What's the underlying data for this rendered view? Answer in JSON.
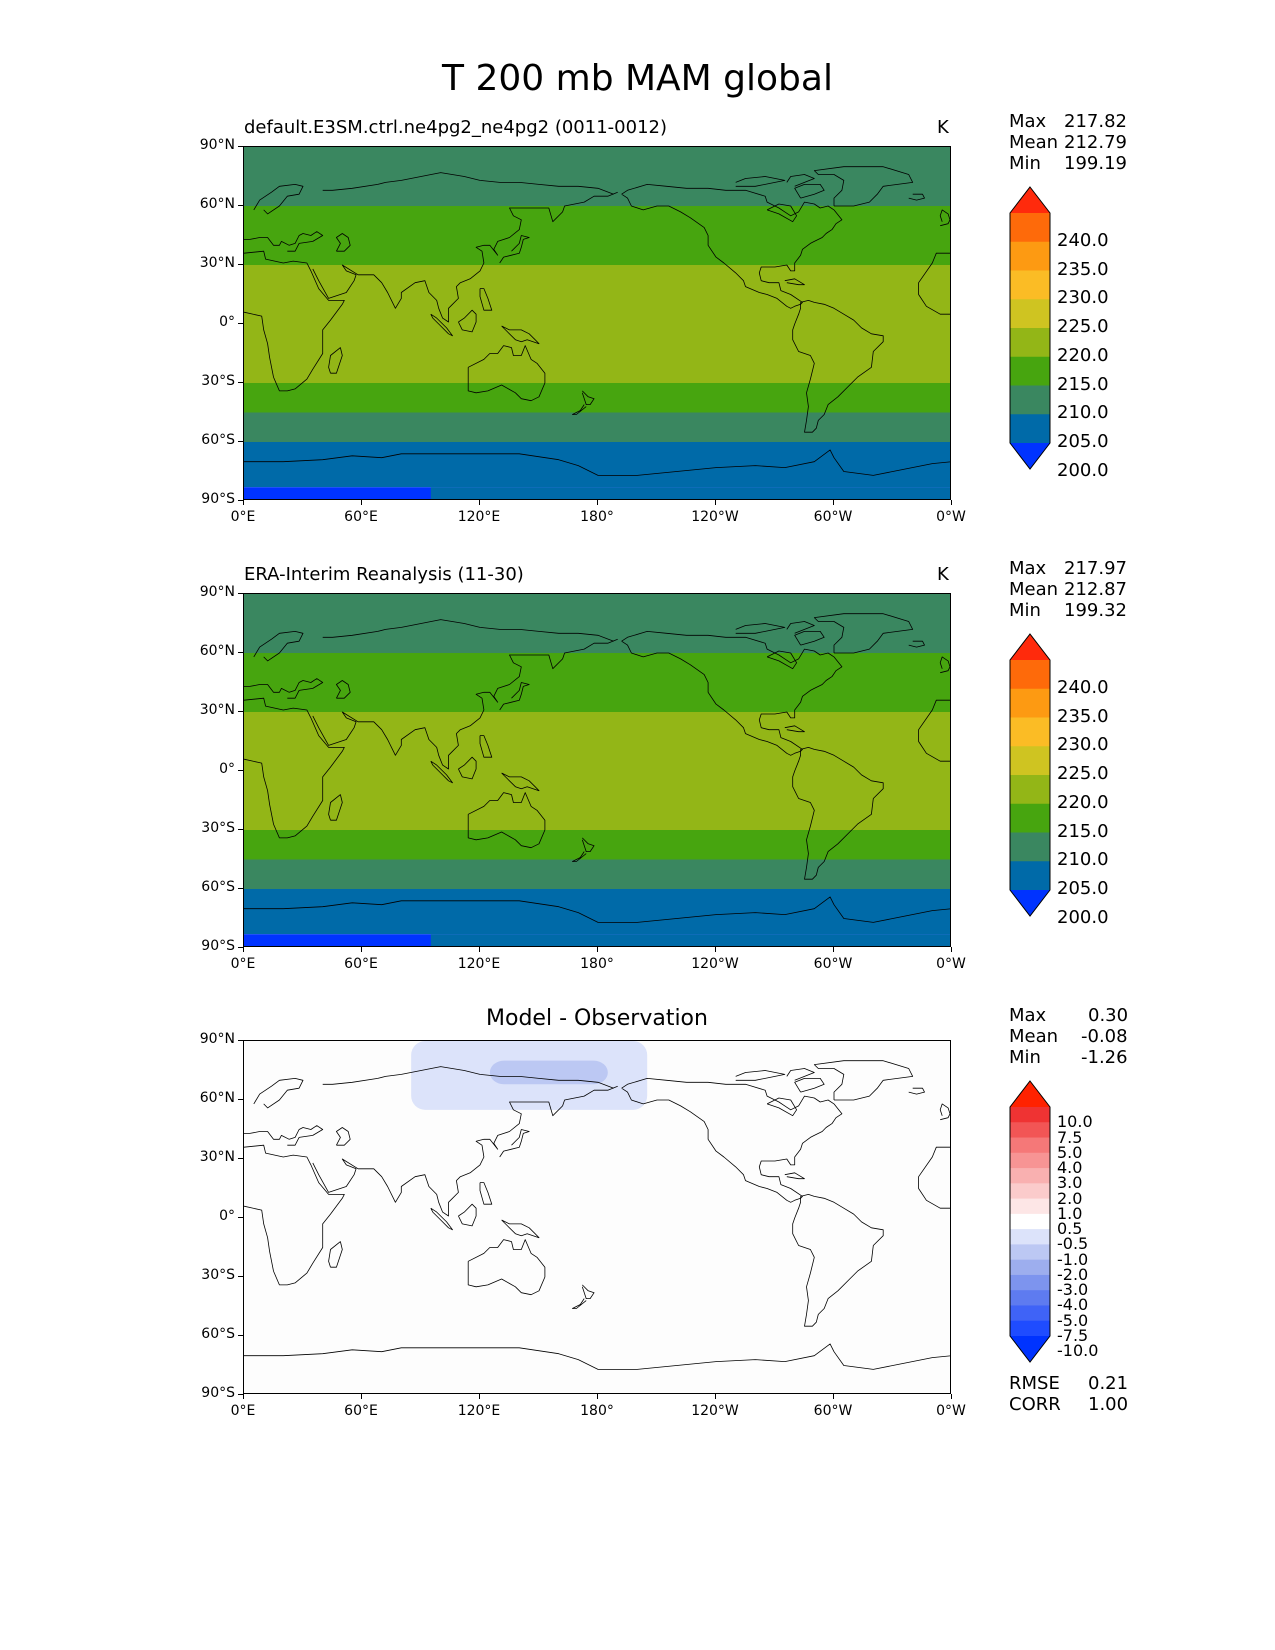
{
  "title": "T 200 mb MAM global",
  "panels": [
    {
      "id": "test",
      "title": "default.E3SM.ctrl.ne4pg2_ne4pg2 (0011-0012)",
      "units": "K",
      "stats": {
        "max_label": "Max",
        "max": "217.82",
        "mean_label": "Mean",
        "mean": "212.79",
        "min_label": "Min",
        "min": "199.19"
      },
      "colorbar": {
        "labels": [
          "240.0",
          "235.0",
          "230.0",
          "225.0",
          "220.0",
          "215.0",
          "210.0",
          "205.0",
          "200.0"
        ]
      }
    },
    {
      "id": "ref",
      "title": "ERA-Interim Reanalysis (11-30)",
      "units": "K",
      "stats": {
        "max_label": "Max",
        "max": "217.97",
        "mean_label": "Mean",
        "mean": "212.87",
        "min_label": "Min",
        "min": "199.32"
      },
      "colorbar": {
        "labels": [
          "240.0",
          "235.0",
          "230.0",
          "225.0",
          "220.0",
          "215.0",
          "210.0",
          "205.0",
          "200.0"
        ]
      }
    },
    {
      "id": "diff",
      "title": "Model - Observation",
      "units": "",
      "stats": {
        "max_label": "Max",
        "max": "0.30",
        "mean_label": "Mean",
        "mean": "-0.08",
        "min_label": "Min",
        "min": "-1.26"
      },
      "colorbar": {
        "labels": [
          "10.0",
          "7.5",
          "5.0",
          "4.0",
          "3.0",
          "2.0",
          "1.0",
          "0.5",
          "-0.5",
          "-1.0",
          "-2.0",
          "-3.0",
          "-4.0",
          "-5.0",
          "-7.5",
          "-10.0"
        ]
      },
      "metrics": {
        "rmse_label": "RMSE",
        "rmse": "0.21",
        "corr_label": "CORR",
        "corr": "1.00"
      }
    }
  ],
  "axes": {
    "lat_ticks": [
      "90°N",
      "60°N",
      "30°N",
      "0°",
      "30°S",
      "60°S",
      "90°S"
    ],
    "lon_ticks": [
      "0°E",
      "60°E",
      "120°E",
      "180°",
      "120°W",
      "60°W",
      "0°W"
    ]
  },
  "chart_data": [
    {
      "type": "heatmap",
      "title": "default.E3SM.ctrl.ne4pg2_ne4pg2 (0011-0012)",
      "units": "K",
      "levels": [
        200,
        205,
        210,
        215,
        220,
        225,
        230,
        235,
        240
      ],
      "colors": [
        "#0033ff",
        "#006aa8",
        "#3a8760",
        "#47a50f",
        "#93b617",
        "#cfc421",
        "#fbbc25",
        "#fd9a12",
        "#fe6a0a",
        "#ff2a0c"
      ],
      "zonal_bands": [
        {
          "lat_range": [
            60,
            90
          ],
          "value_K": 207.5
        },
        {
          "lat_range": [
            30,
            60
          ],
          "value_K": 212.5
        },
        {
          "lat_range": [
            -30,
            30
          ],
          "value_K": 217.5
        },
        {
          "lat_range": [
            -45,
            -30
          ],
          "value_K": 212.5
        },
        {
          "lat_range": [
            -60,
            -45
          ],
          "value_K": 207.5
        },
        {
          "lat_range": [
            -83,
            -60
          ],
          "value_K": 202.5
        },
        {
          "lat_range": [
            -90,
            -83
          ],
          "value_K": 199.5
        }
      ],
      "max": 217.82,
      "mean": 212.79,
      "min": 199.19
    },
    {
      "type": "heatmap",
      "title": "ERA-Interim Reanalysis (11-30)",
      "units": "K",
      "levels": [
        200,
        205,
        210,
        215,
        220,
        225,
        230,
        235,
        240
      ],
      "zonal_bands": [
        {
          "lat_range": [
            60,
            90
          ],
          "value_K": 207.5
        },
        {
          "lat_range": [
            30,
            60
          ],
          "value_K": 212.5
        },
        {
          "lat_range": [
            -30,
            30
          ],
          "value_K": 217.5
        },
        {
          "lat_range": [
            -45,
            -30
          ],
          "value_K": 212.5
        },
        {
          "lat_range": [
            -60,
            -45
          ],
          "value_K": 207.5
        },
        {
          "lat_range": [
            -83,
            -60
          ],
          "value_K": 202.5
        },
        {
          "lat_range": [
            -90,
            -83
          ],
          "value_K": 199.5
        }
      ],
      "max": 217.97,
      "mean": 212.87,
      "min": 199.32
    },
    {
      "type": "heatmap",
      "title": "Model - Observation",
      "levels": [
        -10.0,
        -7.5,
        -5.0,
        -4.0,
        -3.0,
        -2.0,
        -1.0,
        -0.5,
        0.5,
        1.0,
        2.0,
        3.0,
        4.0,
        5.0,
        7.5,
        10.0
      ],
      "background_value": 0,
      "anomalies": [
        {
          "lon_range": [
            85,
            205
          ],
          "lat_range": [
            55,
            90
          ],
          "value": -0.75
        },
        {
          "lon_range": [
            125,
            185
          ],
          "lat_range": [
            68,
            80
          ],
          "value": -1.25
        }
      ],
      "max": 0.3,
      "mean": -0.08,
      "min": -1.26,
      "rmse": 0.21,
      "corr": 1.0
    }
  ],
  "colors": {
    "seq": [
      "#0033ff",
      "#006aa8",
      "#3a8760",
      "#47a50f",
      "#93b617",
      "#cfc421",
      "#fbbc25",
      "#fd9a12",
      "#fe6a0a",
      "#ff2a0c"
    ],
    "div": [
      "#0033ff",
      "#1f4cff",
      "#3f63f7",
      "#5e7bf0",
      "#7d94ee",
      "#9daeee",
      "#bcc8f3",
      "#dce3fa",
      "#ffffff",
      "#fde6e6",
      "#fbcbcb",
      "#f9b0b0",
      "#f79494",
      "#f57878",
      "#f25555",
      "#ef3333",
      "#ff2200"
    ]
  }
}
